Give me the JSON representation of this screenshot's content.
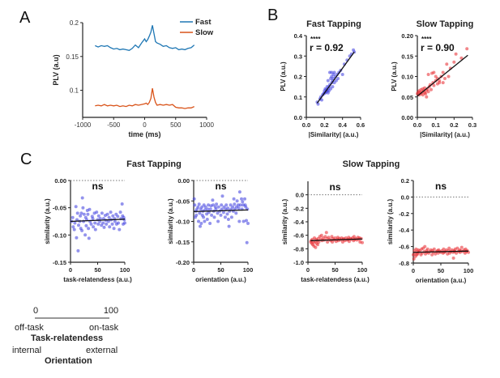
{
  "panels": {
    "A": "A",
    "B": "B",
    "C": "C"
  },
  "group_titles": {
    "fast": "Fast Tapping",
    "slow": "Slow Tapping"
  },
  "scale_legend": {
    "min": "0",
    "max": "100",
    "task_low": "off-task",
    "task_high": "on-task",
    "task_title": "Task-relatendess",
    "orient_low": "internal",
    "orient_high": "external",
    "orient_title": "Orientation"
  },
  "colors": {
    "fast_line": "#1f77b4",
    "slow_line": "#d95319",
    "fast_dot": "#3b3bde",
    "slow_dot": "#e8242a",
    "fit": "#111111"
  },
  "chart_data": [
    {
      "id": "A",
      "type": "line",
      "title": "",
      "xlabel": "time (ms)",
      "ylabel": "PLV (a.u)",
      "xlim": [
        -1000,
        1000
      ],
      "ylim": [
        0.06,
        0.2
      ],
      "xticks": [
        -1000,
        -500,
        0,
        500,
        1000
      ],
      "yticks": [
        0.1,
        0.15,
        0.2
      ],
      "ytick_labels": [
        "0.1",
        "0.15",
        "0.2"
      ],
      "legend": {
        "position": "top-right",
        "entries": [
          "Fast",
          "Slow"
        ]
      },
      "series": [
        {
          "name": "Fast",
          "x": [
            -800,
            -750,
            -700,
            -650,
            -600,
            -550,
            -500,
            -450,
            -400,
            -350,
            -300,
            -250,
            -200,
            -150,
            -100,
            -50,
            0,
            25,
            50,
            75,
            100,
            125,
            150,
            175,
            200,
            250,
            300,
            350,
            400,
            450,
            500,
            550,
            600,
            650,
            700,
            750,
            800
          ],
          "y": [
            0.166,
            0.164,
            0.166,
            0.165,
            0.166,
            0.163,
            0.161,
            0.162,
            0.16,
            0.161,
            0.16,
            0.159,
            0.162,
            0.167,
            0.163,
            0.17,
            0.176,
            0.172,
            0.175,
            0.18,
            0.186,
            0.196,
            0.184,
            0.172,
            0.17,
            0.168,
            0.165,
            0.166,
            0.163,
            0.162,
            0.163,
            0.16,
            0.161,
            0.16,
            0.162,
            0.163,
            0.167
          ]
        },
        {
          "name": "Slow",
          "x": [
            -800,
            -750,
            -700,
            -650,
            -600,
            -550,
            -500,
            -450,
            -400,
            -350,
            -300,
            -250,
            -200,
            -150,
            -100,
            -50,
            0,
            25,
            50,
            75,
            100,
            125,
            150,
            175,
            200,
            250,
            300,
            350,
            400,
            450,
            500,
            550,
            600,
            650,
            700,
            750,
            800
          ],
          "y": [
            0.077,
            0.078,
            0.077,
            0.079,
            0.077,
            0.078,
            0.077,
            0.078,
            0.076,
            0.077,
            0.076,
            0.078,
            0.077,
            0.079,
            0.078,
            0.079,
            0.08,
            0.081,
            0.079,
            0.082,
            0.088,
            0.103,
            0.09,
            0.082,
            0.078,
            0.079,
            0.078,
            0.079,
            0.078,
            0.079,
            0.075,
            0.074,
            0.074,
            0.073,
            0.074,
            0.074,
            0.076
          ]
        }
      ]
    },
    {
      "id": "B-fast",
      "type": "scatter",
      "title": "Fast Tapping",
      "xlabel": "|Similarity| (a.u.)",
      "ylabel": "PLV (a.u.)",
      "xlim": [
        0.0,
        0.6
      ],
      "ylim": [
        0.0,
        0.4
      ],
      "xticks": [
        0.0,
        0.2,
        0.4,
        0.6
      ],
      "xtick_labels": [
        "0.0",
        "0.2",
        "0.4",
        "0.6"
      ],
      "yticks": [
        0.0,
        0.1,
        0.2,
        0.3,
        0.4
      ],
      "ytick_labels": [
        "0.0",
        "0.1",
        "0.2",
        "0.3",
        "0.4"
      ],
      "annotation": {
        "stars": "****",
        "r": "r = 0.92"
      },
      "fit": {
        "x": [
          0.12,
          0.53
        ],
        "y": [
          0.07,
          0.32
        ]
      },
      "x": [
        0.12,
        0.13,
        0.15,
        0.16,
        0.17,
        0.18,
        0.19,
        0.2,
        0.2,
        0.21,
        0.21,
        0.22,
        0.22,
        0.23,
        0.23,
        0.24,
        0.24,
        0.24,
        0.25,
        0.25,
        0.26,
        0.26,
        0.27,
        0.27,
        0.28,
        0.28,
        0.28,
        0.29,
        0.29,
        0.3,
        0.3,
        0.31,
        0.31,
        0.32,
        0.33,
        0.34,
        0.35,
        0.36,
        0.38,
        0.4,
        0.42,
        0.45,
        0.48,
        0.5,
        0.52,
        0.53
      ],
      "y": [
        0.075,
        0.065,
        0.09,
        0.1,
        0.085,
        0.11,
        0.115,
        0.12,
        0.13,
        0.12,
        0.14,
        0.125,
        0.135,
        0.13,
        0.15,
        0.14,
        0.12,
        0.18,
        0.15,
        0.13,
        0.16,
        0.22,
        0.14,
        0.19,
        0.17,
        0.2,
        0.22,
        0.18,
        0.15,
        0.19,
        0.21,
        0.17,
        0.22,
        0.2,
        0.18,
        0.21,
        0.19,
        0.22,
        0.23,
        0.21,
        0.26,
        0.28,
        0.3,
        0.31,
        0.33,
        0.32
      ]
    },
    {
      "id": "B-slow",
      "type": "scatter",
      "title": "Slow Tapping",
      "xlabel": "|Similarity| (a.u.)",
      "ylabel": "PLV (a.u.)",
      "xlim": [
        0.0,
        0.3
      ],
      "ylim": [
        0.0,
        0.2
      ],
      "xticks": [
        0.0,
        0.1,
        0.2,
        0.3
      ],
      "xtick_labels": [
        "0.0",
        "0.1",
        "0.2",
        "0.3"
      ],
      "yticks": [
        0.0,
        0.05,
        0.1,
        0.15,
        0.2
      ],
      "ytick_labels": [
        "0.00",
        "0.05",
        "0.10",
        "0.15",
        "0.20"
      ],
      "annotation": {
        "stars": "****",
        "r": "r = 0.90"
      },
      "fit": {
        "x": [
          0.0,
          0.275
        ],
        "y": [
          0.052,
          0.152
        ]
      },
      "x": [
        0.0,
        0.005,
        0.01,
        0.01,
        0.015,
        0.02,
        0.02,
        0.025,
        0.03,
        0.03,
        0.035,
        0.04,
        0.04,
        0.045,
        0.05,
        0.05,
        0.055,
        0.06,
        0.06,
        0.065,
        0.07,
        0.075,
        0.08,
        0.085,
        0.09,
        0.09,
        0.1,
        0.1,
        0.11,
        0.11,
        0.12,
        0.12,
        0.13,
        0.14,
        0.14,
        0.15,
        0.16,
        0.17,
        0.18,
        0.2,
        0.21,
        0.24,
        0.27
      ],
      "y": [
        0.058,
        0.062,
        0.055,
        0.065,
        0.06,
        0.058,
        0.068,
        0.062,
        0.055,
        0.07,
        0.065,
        0.06,
        0.072,
        0.058,
        0.05,
        0.066,
        0.07,
        0.063,
        0.105,
        0.075,
        0.08,
        0.068,
        0.108,
        0.085,
        0.11,
        0.078,
        0.09,
        0.1,
        0.082,
        0.095,
        0.09,
        0.085,
        0.1,
        0.11,
        0.085,
        0.095,
        0.13,
        0.1,
        0.12,
        0.135,
        0.155,
        0.145,
        0.168
      ]
    },
    {
      "id": "C-fast-task",
      "type": "scatter",
      "title": "",
      "xlabel": "task-relatendess (a.u.)",
      "ylabel": "similarity (a.u.)",
      "annotation": {
        "text": "ns"
      },
      "xlim": [
        0,
        100
      ],
      "ylim": [
        -0.15,
        0.0
      ],
      "xticks": [
        0,
        50,
        100
      ],
      "xtick_labels": [
        "0",
        "50",
        "100"
      ],
      "yticks": [
        0.0,
        -0.05,
        -0.1,
        -0.15
      ],
      "ytick_labels": [
        "0.00",
        "-0.05",
        "-0.10",
        "-0.15"
      ],
      "zero_line": 0.0,
      "fit": {
        "x": [
          0,
          100
        ],
        "y": [
          -0.075,
          -0.071
        ]
      },
      "x": [
        2,
        4,
        5,
        7,
        8,
        10,
        11,
        12,
        13,
        14,
        15,
        17,
        18,
        19,
        20,
        21,
        22,
        23,
        24,
        25,
        27,
        28,
        29,
        30,
        31,
        32,
        33,
        34,
        35,
        36,
        38,
        40,
        41,
        42,
        44,
        45,
        46,
        48,
        50,
        51,
        52,
        54,
        55,
        57,
        58,
        60,
        61,
        62,
        64,
        65,
        66,
        68,
        70,
        71,
        72,
        74,
        75,
        77,
        78,
        80,
        81,
        82,
        84,
        85,
        87,
        88,
        90,
        92,
        93,
        95,
        96,
        97,
        98,
        99,
        100
      ],
      "y": [
        -0.075,
        -0.068,
        -0.085,
        -0.09,
        -0.078,
        -0.048,
        -0.105,
        -0.072,
        -0.06,
        -0.129,
        -0.082,
        -0.075,
        -0.065,
        -0.088,
        -0.06,
        -0.092,
        -0.032,
        -0.05,
        -0.075,
        -0.062,
        -0.1,
        -0.068,
        -0.083,
        -0.072,
        -0.055,
        -0.062,
        -0.088,
        -0.106,
        -0.053,
        -0.075,
        -0.08,
        -0.066,
        -0.07,
        -0.085,
        -0.06,
        -0.078,
        -0.09,
        -0.058,
        -0.072,
        -0.08,
        -0.065,
        -0.075,
        -0.07,
        -0.082,
        -0.06,
        -0.078,
        -0.07,
        -0.086,
        -0.064,
        -0.073,
        -0.08,
        -0.062,
        -0.075,
        -0.068,
        -0.085,
        -0.058,
        -0.072,
        -0.08,
        -0.065,
        -0.088,
        -0.07,
        -0.075,
        -0.062,
        -0.08,
        -0.066,
        -0.078,
        -0.09,
        -0.058,
        -0.07,
        -0.043,
        -0.065,
        -0.08,
        -0.068,
        -0.072,
        -0.078
      ]
    },
    {
      "id": "C-fast-orient",
      "type": "scatter",
      "title": "Fast Tapping",
      "xlabel": "orientation (a.u.)",
      "ylabel": "similarity (a.u.)",
      "annotation": {
        "text": "ns"
      },
      "xlim": [
        0,
        100
      ],
      "ylim": [
        -0.2,
        0.0
      ],
      "xticks": [
        0,
        50,
        100
      ],
      "xtick_labels": [
        "0",
        "50",
        "100"
      ],
      "yticks": [
        0.0,
        -0.05,
        -0.1,
        -0.15,
        -0.2
      ],
      "ytick_labels": [
        "0.00",
        "-0.05",
        "-0.10",
        "-0.15",
        "-0.20"
      ],
      "zero_line": 0.0,
      "fit": {
        "x": [
          0,
          100
        ],
        "y": [
          -0.076,
          -0.072
        ]
      },
      "x": [
        1,
        2,
        3,
        4,
        5,
        6,
        8,
        9,
        10,
        11,
        12,
        13,
        14,
        15,
        16,
        17,
        18,
        19,
        20,
        21,
        22,
        24,
        25,
        26,
        27,
        28,
        30,
        31,
        32,
        33,
        35,
        36,
        37,
        38,
        40,
        41,
        42,
        44,
        45,
        46,
        48,
        50,
        51,
        52,
        53,
        55,
        56,
        58,
        59,
        60,
        62,
        63,
        64,
        65,
        66,
        68,
        69,
        70,
        72,
        73,
        74,
        75,
        76,
        78,
        79,
        80,
        82,
        83,
        84,
        85,
        86,
        88,
        89,
        90,
        91,
        92,
        94,
        95,
        96,
        97,
        98,
        99,
        100
      ],
      "y": [
        -0.045,
        -0.06,
        -0.09,
        -0.075,
        -0.085,
        -0.07,
        -0.065,
        -0.1,
        -0.058,
        -0.08,
        -0.112,
        -0.07,
        -0.105,
        -0.065,
        -0.085,
        -0.075,
        -0.09,
        -0.06,
        -0.1,
        -0.072,
        -0.065,
        -0.082,
        -0.095,
        -0.07,
        -0.06,
        -0.078,
        -0.105,
        -0.07,
        -0.062,
        -0.085,
        -0.048,
        -0.06,
        -0.075,
        -0.09,
        -0.065,
        -0.07,
        -0.058,
        -0.08,
        -0.1,
        -0.065,
        -0.075,
        -0.085,
        -0.06,
        -0.07,
        -0.038,
        -0.078,
        -0.065,
        -0.09,
        -0.07,
        -0.06,
        -0.082,
        -0.068,
        -0.095,
        -0.112,
        -0.075,
        -0.06,
        -0.07,
        -0.09,
        -0.065,
        -0.075,
        -0.045,
        -0.058,
        -0.07,
        -0.08,
        -0.065,
        -0.05,
        -0.06,
        -0.068,
        -0.1,
        -0.028,
        -0.06,
        -0.045,
        -0.07,
        -0.052,
        -0.06,
        -0.1,
        -0.045,
        -0.06,
        -0.065,
        -0.098,
        -0.152,
        -0.07,
        -0.105
      ]
    },
    {
      "id": "C-slow-task",
      "type": "scatter",
      "title": "Slow Tapping",
      "xlabel": "task-relatendess (a.u.)",
      "ylabel": "similarity (a.u.)",
      "annotation": {
        "text": "ns"
      },
      "xlim": [
        0,
        100
      ],
      "ylim": [
        -1.0,
        0.2
      ],
      "xticks": [
        0,
        50,
        100
      ],
      "xtick_labels": [
        "0",
        "50",
        "100"
      ],
      "yticks": [
        0.0,
        -0.2,
        -0.4,
        -0.6,
        -0.8,
        -1.0
      ],
      "ytick_labels": [
        "0.0",
        "-0.2",
        "-0.4",
        "-0.6",
        "-0.8",
        "-1.0"
      ],
      "zero_line": 0.0,
      "fit": {
        "x": [
          5,
          100
        ],
        "y": [
          -0.68,
          -0.655
        ]
      },
      "x": [
        5,
        6,
        7,
        8,
        9,
        10,
        11,
        12,
        13,
        14,
        15,
        16,
        17,
        18,
        19,
        20,
        22,
        24,
        25,
        26,
        28,
        30,
        32,
        34,
        35,
        36,
        38,
        40,
        42,
        44,
        45,
        46,
        48,
        50,
        52,
        54,
        55,
        56,
        58,
        60,
        62,
        64,
        65,
        66,
        68,
        70,
        72,
        74,
        75,
        76,
        78,
        80,
        82,
        84,
        85,
        86,
        88,
        90,
        92,
        94,
        95,
        96,
        98,
        100
      ],
      "y": [
        -0.7,
        -0.68,
        -0.72,
        -0.66,
        -0.74,
        -0.7,
        -0.76,
        -0.64,
        -0.7,
        -0.78,
        -0.66,
        -0.72,
        -0.68,
        -0.74,
        -0.65,
        -0.7,
        -0.62,
        -0.66,
        -0.6,
        -0.68,
        -0.64,
        -0.67,
        -0.62,
        -0.56,
        -0.65,
        -0.7,
        -0.63,
        -0.66,
        -0.68,
        -0.62,
        -0.7,
        -0.65,
        -0.67,
        -0.64,
        -0.69,
        -0.66,
        -0.63,
        -0.68,
        -0.65,
        -0.67,
        -0.64,
        -0.7,
        -0.66,
        -0.65,
        -0.68,
        -0.64,
        -0.67,
        -0.66,
        -0.63,
        -0.69,
        -0.65,
        -0.66,
        -0.64,
        -0.68,
        -0.62,
        -0.66,
        -0.65,
        -0.67,
        -0.63,
        -0.66,
        -0.64,
        -0.7,
        -0.65,
        -0.71
      ]
    },
    {
      "id": "C-slow-orient",
      "type": "scatter",
      "title": "",
      "xlabel": "orientation (a.u.)",
      "ylabel": "similarity (a.u.)",
      "annotation": {
        "text": "ns"
      },
      "xlim": [
        0,
        100
      ],
      "ylim": [
        -0.8,
        0.2
      ],
      "xticks": [
        0,
        50,
        100
      ],
      "xtick_labels": [
        "0",
        "50",
        "100"
      ],
      "yticks": [
        0.2,
        0.0,
        -0.2,
        -0.4,
        -0.6,
        -0.8
      ],
      "ytick_labels": [
        "0.2",
        "0.0",
        "-0.2",
        "-0.4",
        "-0.6",
        "-0.8"
      ],
      "zero_line": 0.0,
      "fit": {
        "x": [
          0,
          100
        ],
        "y": [
          -0.67,
          -0.655
        ]
      },
      "x": [
        0,
        1,
        2,
        3,
        4,
        5,
        6,
        7,
        8,
        9,
        10,
        12,
        14,
        15,
        16,
        18,
        20,
        21,
        22,
        24,
        25,
        26,
        28,
        30,
        32,
        34,
        35,
        36,
        38,
        40,
        42,
        44,
        45,
        46,
        48,
        50,
        52,
        54,
        55,
        56,
        58,
        60,
        62,
        64,
        65,
        66,
        68,
        70,
        72,
        73,
        74,
        75,
        76,
        78,
        80,
        82,
        84,
        85,
        86,
        88,
        90,
        92,
        94,
        95,
        96,
        98,
        100
      ],
      "y": [
        -0.7,
        -0.75,
        -0.65,
        -0.68,
        -0.72,
        -0.63,
        -0.7,
        -0.66,
        -0.69,
        -0.64,
        -0.67,
        -0.65,
        -0.7,
        -0.63,
        -0.68,
        -0.62,
        -0.66,
        -0.6,
        -0.69,
        -0.65,
        -0.67,
        -0.63,
        -0.68,
        -0.66,
        -0.64,
        -0.7,
        -0.65,
        -0.67,
        -0.63,
        -0.69,
        -0.66,
        -0.65,
        -0.68,
        -0.64,
        -0.66,
        -0.67,
        -0.65,
        -0.68,
        -0.63,
        -0.67,
        -0.66,
        -0.64,
        -0.69,
        -0.65,
        -0.62,
        -0.68,
        -0.66,
        -0.64,
        -0.67,
        -0.74,
        -0.65,
        -0.66,
        -0.63,
        -0.68,
        -0.62,
        -0.66,
        -0.64,
        -0.67,
        -0.65,
        -0.61,
        -0.66,
        -0.64,
        -0.68,
        -0.63,
        -0.66,
        -0.65,
        -0.67
      ]
    }
  ]
}
